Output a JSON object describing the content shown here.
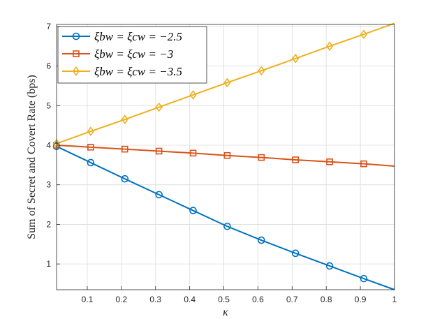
{
  "chart_data": {
    "type": "line",
    "xlabel": "κ",
    "ylabel": "Sum of Secret and Covert Rate (bps)",
    "xlim": [
      0.01,
      1
    ],
    "ylim": [
      0.35,
      7.05
    ],
    "xticks": [
      0.1,
      0.2,
      0.3,
      0.4,
      0.5,
      0.6,
      0.7,
      0.8,
      0.9,
      1
    ],
    "xtick_labels": [
      "0.1",
      "0.2",
      "0.3",
      "0.4",
      "0.5",
      "0.6",
      "0.7",
      "0.8",
      "0.9",
      "1"
    ],
    "yticks": [
      1,
      2,
      3,
      4,
      5,
      6,
      7
    ],
    "ytick_labels": [
      "1",
      "2",
      "3",
      "4",
      "5",
      "6",
      "7"
    ],
    "grid": true,
    "legend_position": "top-left",
    "x": [
      0.01,
      0.11,
      0.21,
      0.31,
      0.41,
      0.51,
      0.61,
      0.71,
      0.81,
      0.91,
      1.0
    ],
    "series": [
      {
        "name": "ξbw = ξcw = −2.5",
        "color": "#0072BD",
        "marker": "circle",
        "values": [
          3.97,
          3.56,
          3.15,
          2.75,
          2.35,
          1.95,
          1.6,
          1.27,
          0.95,
          0.63,
          0.35
        ]
      },
      {
        "name": "ξbw = ξcw = −3",
        "color": "#D95319",
        "marker": "square",
        "values": [
          4.0,
          3.95,
          3.9,
          3.85,
          3.8,
          3.74,
          3.69,
          3.63,
          3.58,
          3.53,
          3.47
        ]
      },
      {
        "name": "ξbw = ξcw = −3.5",
        "color": "#EDB120",
        "marker": "diamond",
        "values": [
          4.04,
          4.35,
          4.65,
          4.96,
          5.27,
          5.58,
          5.88,
          6.19,
          6.5,
          6.8,
          7.08
        ]
      }
    ]
  }
}
